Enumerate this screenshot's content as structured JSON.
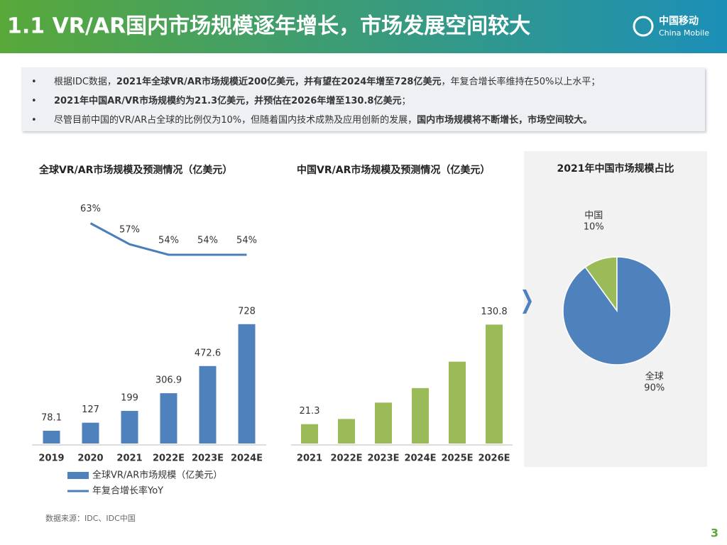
{
  "header": {
    "title": "1.1 VR/AR国内市场规模逐年增长，市场发展空间较大",
    "logo_cn": "中国移动",
    "logo_en": "China Mobile"
  },
  "bullets": [
    [
      {
        "text": "根据IDC数据，",
        "bold": false
      },
      {
        "text": "2021年全球VR/AR市场规模近200亿美元，并有望在2024年增至728亿美元",
        "bold": true
      },
      {
        "text": "，年复合增长率维持在50%以上水平；",
        "bold": false
      }
    ],
    [
      {
        "text": "2021年中国AR/VR市场规模约为21.3亿美元，并预估在2026年增至130.8亿美元",
        "bold": true
      },
      {
        "text": "；",
        "bold": false
      }
    ],
    [
      {
        "text": "尽管目前中国的VR/AR占全球的比例仅为10%，但随着国内技术成熟及应用创新的发展，",
        "bold": false
      },
      {
        "text": "国内市场规模将不断增长，市场空间较大。",
        "bold": true
      }
    ]
  ],
  "chart_data": [
    {
      "type": "bar",
      "title": "全球VR/AR市场规模及预测情况（亿美元）",
      "categories": [
        "2019",
        "2020",
        "2021",
        "2022E",
        "2023E",
        "2024E"
      ],
      "series": [
        {
          "name": "全球VR/AR市场规模（亿美元）",
          "type": "bar",
          "color": "#4f81bd",
          "values": [
            78.1,
            127,
            199,
            306.9,
            472.6,
            728
          ]
        },
        {
          "name": "年复合增长率YoY",
          "type": "line",
          "axis": "y2",
          "color": "#4a7ebb",
          "values": [
            null,
            63,
            57,
            54,
            54,
            54
          ],
          "value_labels": [
            null,
            "63%",
            "57%",
            "54%",
            "54%",
            "54%"
          ]
        }
      ],
      "ylim": [
        0,
        1450
      ],
      "y2lim": [
        0,
        68
      ],
      "legend": "bottom"
    },
    {
      "type": "bar",
      "title": "中国VR/AR市场规模及预测情况（亿美元）",
      "categories": [
        "2021",
        "2022E",
        "2023E",
        "2024E",
        "2025E",
        "2026E"
      ],
      "series": [
        {
          "name": null,
          "type": "bar",
          "color": "#9bbb59",
          "values": [
            21.3,
            27,
            45,
            61,
            90,
            130.8
          ],
          "value_labels": [
            "21.3",
            null,
            null,
            null,
            null,
            "130.8"
          ]
        }
      ],
      "ylim": [
        0,
        160
      ]
    },
    {
      "type": "pie",
      "title": "2021年中国市场规模占比",
      "categories": [
        "中国",
        "全球"
      ],
      "values": [
        10,
        90
      ],
      "value_labels": [
        "10%",
        "90%"
      ],
      "colors": [
        "#9bbb59",
        "#4f81bd"
      ]
    }
  ],
  "source": "数据来源：IDC、IDC中国",
  "page_number": "3"
}
